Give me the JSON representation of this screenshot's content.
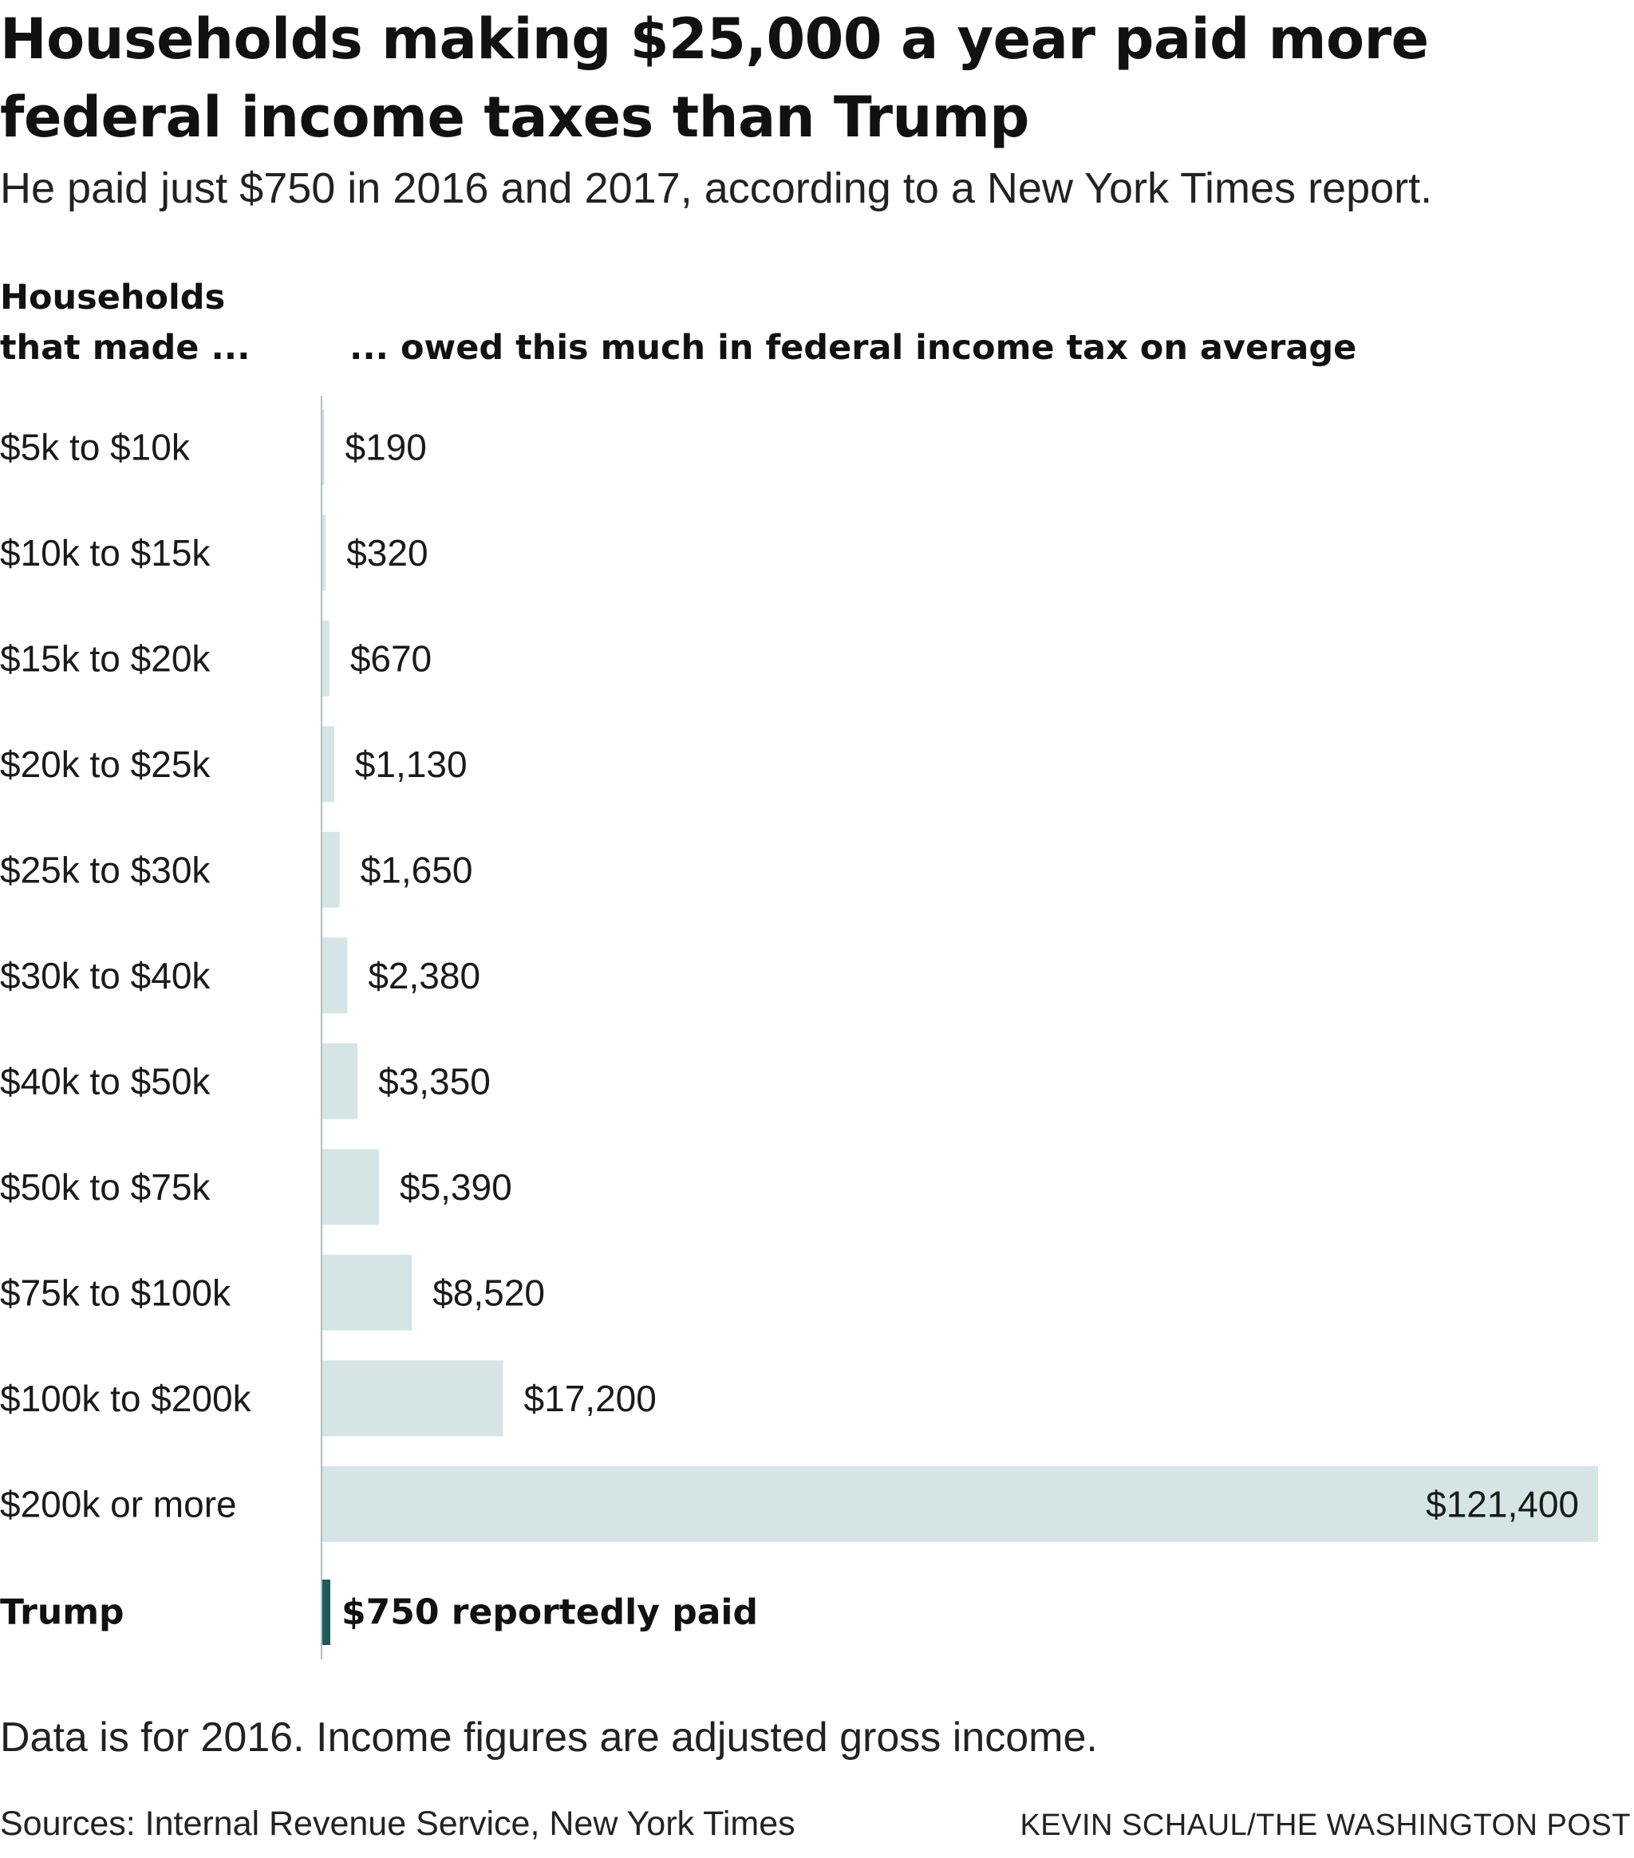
{
  "header": {
    "title": "Households making $25,000 a year paid more federal income taxes than Trump",
    "subtitle": "He paid just $750 in 2016 and 2017, according to a New York Times report."
  },
  "columns": {
    "left": "Households that made ...",
    "right": "... owed this much in federal income tax on average"
  },
  "chart_data": {
    "type": "bar",
    "orientation": "horizontal",
    "categories": [
      "$5k to $10k",
      "$10k to $15k",
      "$15k to $20k",
      "$20k to $25k",
      "$25k to $30k",
      "$30k to $40k",
      "$40k to $50k",
      "$50k to $75k",
      "$75k to $100k",
      "$100k to $200k",
      "$200k or more"
    ],
    "values": [
      190,
      320,
      670,
      1130,
      1650,
      2380,
      3350,
      5390,
      8520,
      17200,
      121400
    ],
    "value_labels": [
      "$190",
      "$320",
      "$670",
      "$1,130",
      "$1,650",
      "$2,380",
      "$3,350",
      "$5,390",
      "$8,520",
      "$17,200",
      "$121,400"
    ],
    "xlim": [
      0,
      121400
    ],
    "bar_color": "#d5e5e6",
    "highlight": {
      "category": "Trump",
      "value": 750,
      "label": "$750 reportedly paid",
      "color": "#1d5a5c"
    },
    "grid": false
  },
  "footer": {
    "note": "Data is for 2016. Income figures are adjusted gross income.",
    "sources": "Sources: Internal Revenue Service, New York Times",
    "credit": "KEVIN SCHAUL/THE WASHINGTON POST"
  }
}
